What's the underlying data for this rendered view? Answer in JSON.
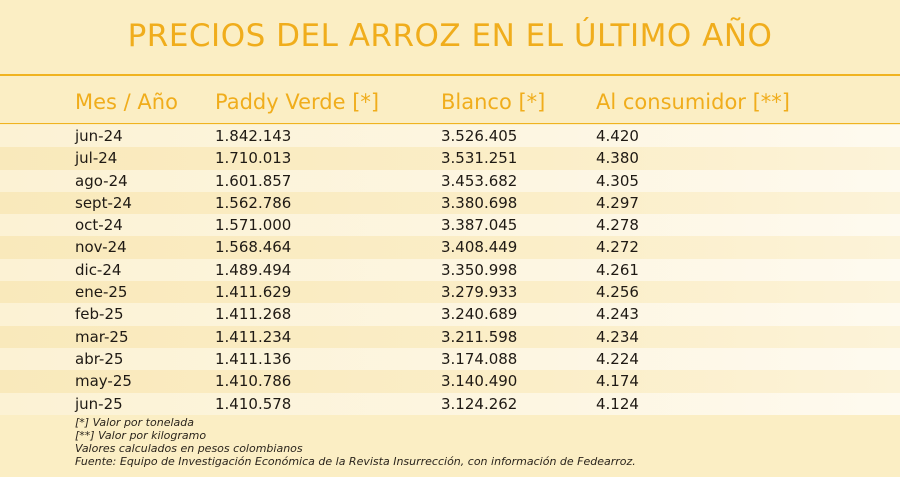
{
  "chart_data": {
    "type": "table",
    "title": "PRECIOS DEL ARROZ EN EL ÚLTIMO AÑO",
    "columns": [
      "Mes / Año",
      "Paddy Verde [*]",
      "Blanco [*]",
      "Al consumidor [**]"
    ],
    "rows": [
      [
        "jun-24",
        "1.842.143",
        "3.526.405",
        "4.420"
      ],
      [
        "jul-24",
        "1.710.013",
        "3.531.251",
        "4.380"
      ],
      [
        "ago-24",
        "1.601.857",
        "3.453.682",
        "4.305"
      ],
      [
        "sept-24",
        "1.562.786",
        "3.380.698",
        "4.297"
      ],
      [
        "oct-24",
        "1.571.000",
        "3.387.045",
        "4.278"
      ],
      [
        "nov-24",
        "1.568.464",
        "3.408.449",
        "4.272"
      ],
      [
        "dic-24",
        "1.489.494",
        "3.350.998",
        "4.261"
      ],
      [
        "ene-25",
        "1.411.629",
        "3.279.933",
        "4.256"
      ],
      [
        "feb-25",
        "1.411.268",
        "3.240.689",
        "4.243"
      ],
      [
        "mar-25",
        "1.411.234",
        "3.211.598",
        "4.234"
      ],
      [
        "abr-25",
        "1.411.136",
        "3.174.088",
        "4.224"
      ],
      [
        "may-25",
        "1.410.786",
        "3.140.490",
        "4.174"
      ],
      [
        "jun-25",
        "1.410.578",
        "3.124.262",
        "4.124"
      ]
    ],
    "notes": [
      "[*] Valor por tonelada",
      "[**] Valor por kilogramo",
      "Valores calculados en pesos colombianos",
      "Fuente: Equipo de Investigación Económica de la Revista Insurrección, con información de Fedearroz."
    ]
  },
  "colors": {
    "background": "#fbeec4",
    "accent": "#f0ad1c",
    "text": "#1f1a14"
  }
}
